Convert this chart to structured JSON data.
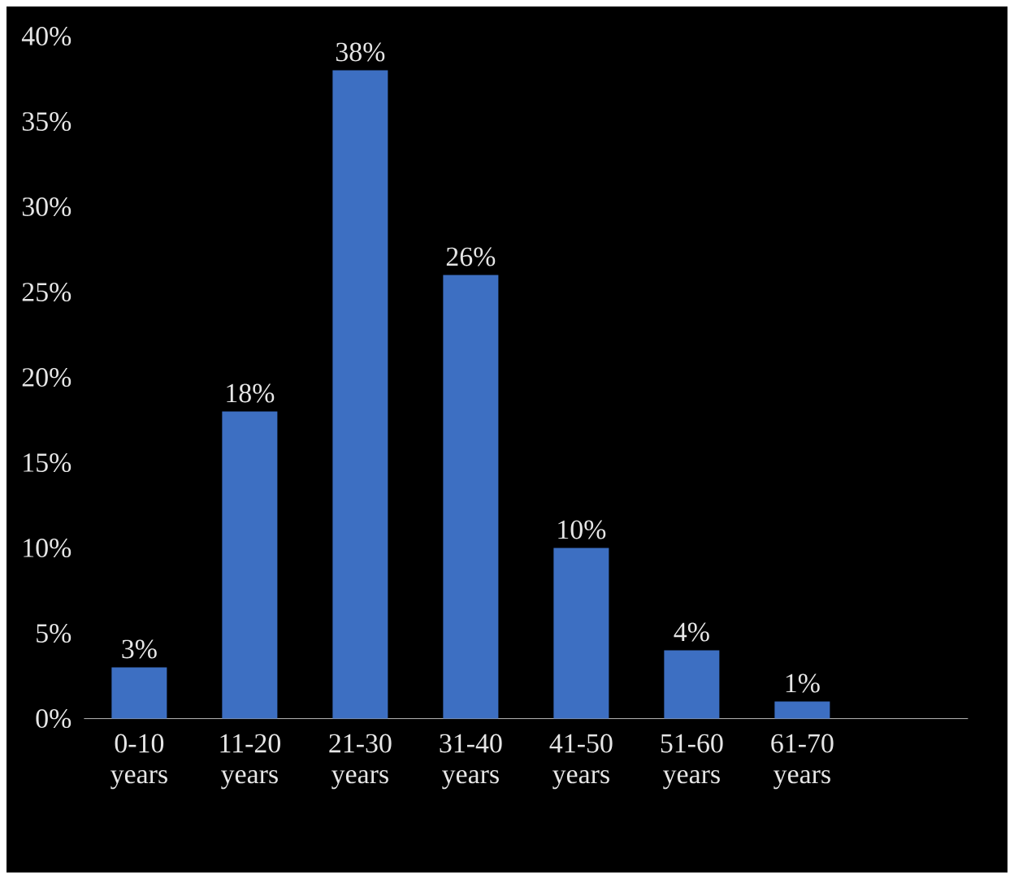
{
  "chart_data": {
    "type": "bar",
    "categories": [
      "0-10 years",
      "11-20 years",
      "21-30 years",
      "31-40 years",
      "41-50 years",
      "51-60 years",
      "61-70 years",
      null
    ],
    "values": [
      3,
      18,
      38,
      26,
      10,
      4,
      1,
      null
    ],
    "value_labels": [
      "3%",
      "18%",
      "38%",
      "26%",
      "10%",
      "4%",
      "1%",
      null
    ],
    "color": "#3d6fc2",
    "ylim": [
      0,
      40
    ],
    "yticks": [
      {
        "value": 0,
        "label": "0%"
      },
      {
        "value": 5,
        "label": "5%"
      },
      {
        "value": 10,
        "label": "10%"
      },
      {
        "value": 15,
        "label": "15%"
      },
      {
        "value": 20,
        "label": "20%"
      },
      {
        "value": 25,
        "label": "25%"
      },
      {
        "value": 30,
        "label": "30%"
      },
      {
        "value": 35,
        "label": "35%"
      },
      {
        "value": 40,
        "label": "40%"
      }
    ],
    "grid": false
  }
}
